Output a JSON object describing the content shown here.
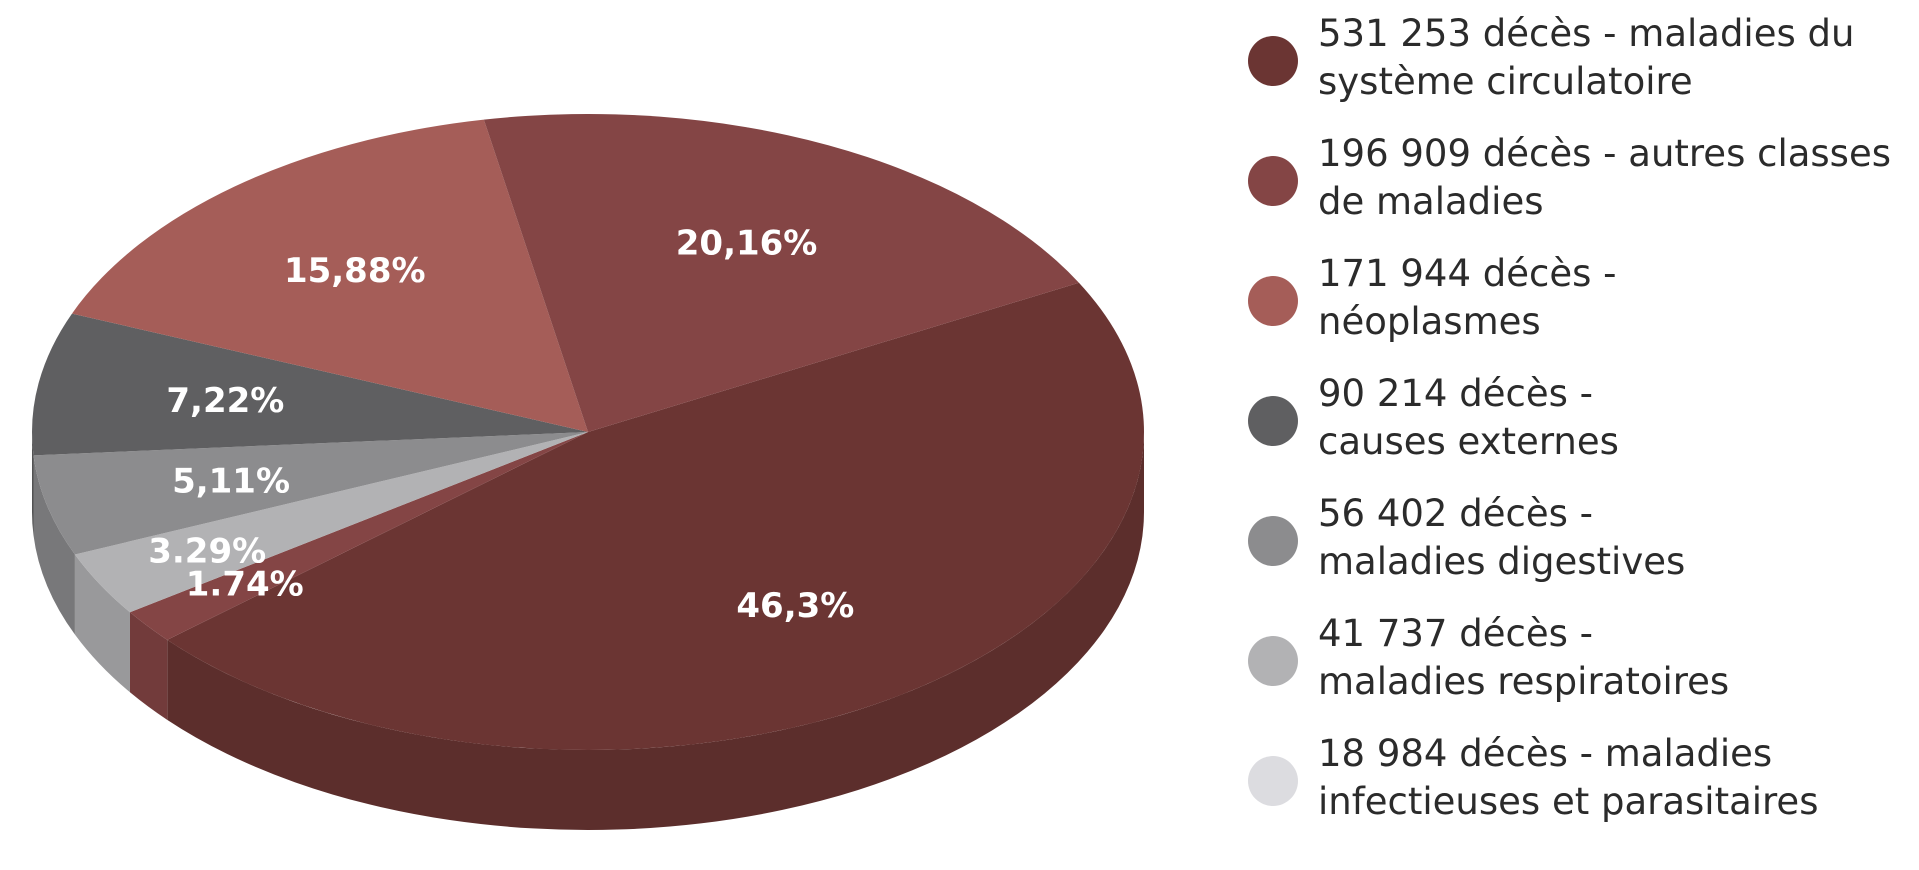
{
  "chart_data": {
    "type": "pie",
    "title": "",
    "three_d": true,
    "legend_position": "right",
    "slices": [
      {
        "label": "46,3%",
        "value": 46.3,
        "color": "#6b3533",
        "legend_lines": [
          "531 253 décès - maladies du",
          "système circulatoire"
        ]
      },
      {
        "label": "1.74%",
        "value": 1.74,
        "color": "#844545",
        "legend_lines": [
          "18 984 décès - maladies",
          "infectieuses et parasitaires"
        ],
        "legend_color": "#dcdce0"
      },
      {
        "label": "3.29%",
        "value": 3.29,
        "color": "#b2b2b4",
        "legend_lines": [
          "41 737 décès -",
          "maladies respiratoires"
        ]
      },
      {
        "label": "5,11%",
        "value": 5.11,
        "color": "#8c8c8e",
        "legend_lines": [
          "56 402 décès -",
          "maladies digestives"
        ]
      },
      {
        "label": "7,22%",
        "value": 7.22,
        "color": "#5f5f61",
        "legend_lines": [
          "90 214 décès -",
          "causes externes"
        ]
      },
      {
        "label": "15,88%",
        "value": 15.88,
        "color": "#a55d58",
        "legend_lines": [
          "171 944 décès -",
          "néoplasmes"
        ]
      },
      {
        "label": "20,16%",
        "value": 20.16,
        "color": "#844545",
        "legend_lines": [
          "196 909 décès - autres classes",
          "de maladies"
        ]
      }
    ],
    "legend_order": [
      0,
      6,
      5,
      4,
      3,
      2,
      1
    ]
  }
}
